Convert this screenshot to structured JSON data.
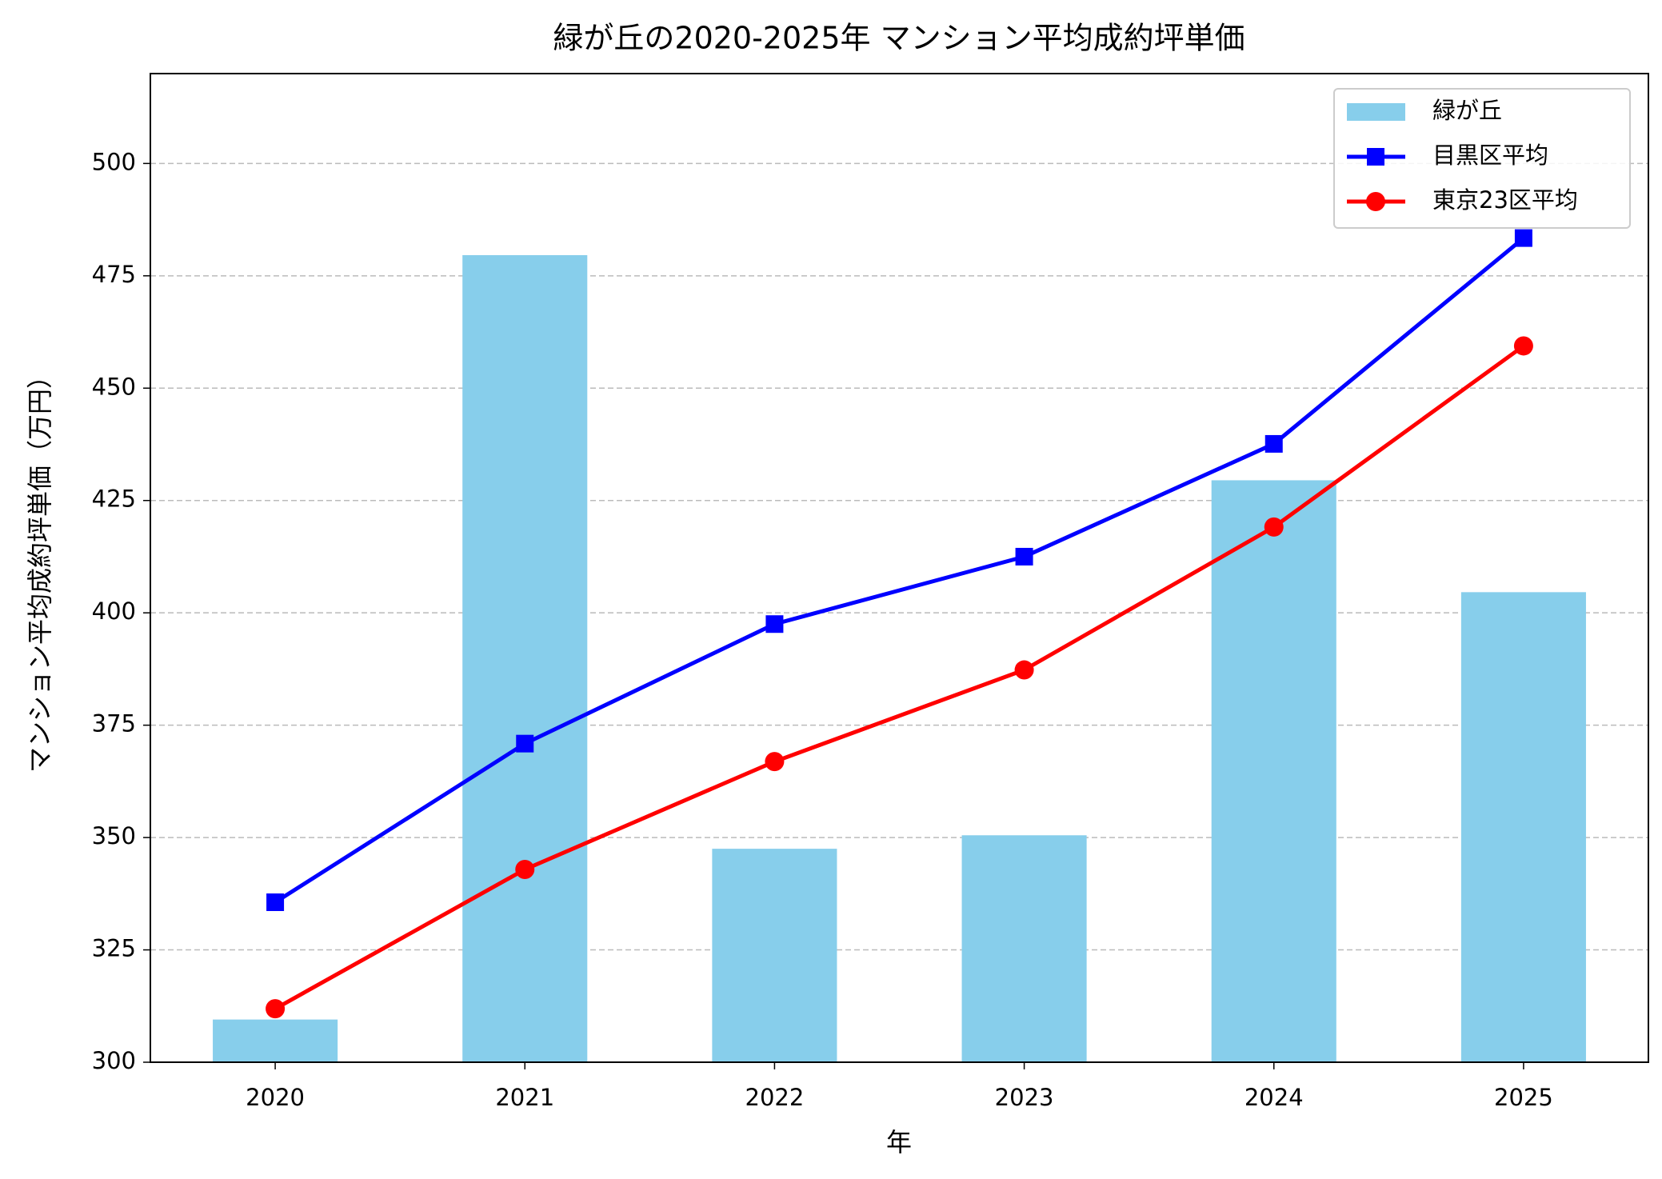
{
  "chart_data": {
    "type": "combo",
    "title": "緑が丘の2020-2025年 マンション平均成約坪単価",
    "x_label": "年",
    "y_label": "マンション平均成約坪単価（万円）",
    "categories": [
      "2020",
      "2021",
      "2022",
      "2023",
      "2024",
      "2025"
    ],
    "series": [
      {
        "name": "緑が丘",
        "type": "bar",
        "color": "#87ceeb",
        "values": [
          309.5,
          479.6,
          347.5,
          350.5,
          429.5,
          404.6
        ]
      },
      {
        "name": "目黒区平均",
        "type": "line",
        "marker": "square",
        "color": "#0000ff",
        "values": [
          335.6,
          370.9,
          397.5,
          412.5,
          437.6,
          483.4
        ]
      },
      {
        "name": "東京23区平均",
        "type": "line",
        "marker": "circle",
        "color": "#ff0000",
        "values": [
          311.9,
          342.9,
          366.9,
          387.3,
          419.1,
          459.4
        ]
      }
    ],
    "ylim": [
      300,
      520
    ],
    "yticks": [
      300,
      325,
      350,
      375,
      400,
      425,
      450,
      475,
      500
    ],
    "grid": "y",
    "legend": "upper right"
  }
}
